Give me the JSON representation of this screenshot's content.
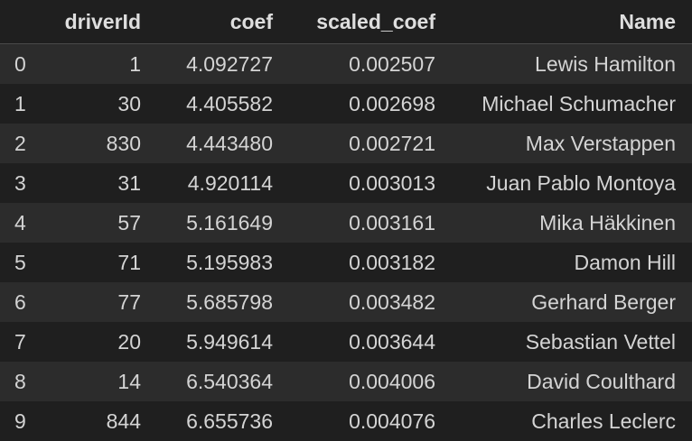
{
  "table": {
    "columns": [
      "",
      "driverId",
      "coef",
      "scaled_coef",
      "Name"
    ],
    "rows": [
      {
        "index": "0",
        "driverId": "1",
        "coef": "4.092727",
        "scaled_coef": "0.002507",
        "name": "Lewis Hamilton"
      },
      {
        "index": "1",
        "driverId": "30",
        "coef": "4.405582",
        "scaled_coef": "0.002698",
        "name": "Michael Schumacher"
      },
      {
        "index": "2",
        "driverId": "830",
        "coef": "4.443480",
        "scaled_coef": "0.002721",
        "name": "Max Verstappen"
      },
      {
        "index": "3",
        "driverId": "31",
        "coef": "4.920114",
        "scaled_coef": "0.003013",
        "name": "Juan Pablo Montoya"
      },
      {
        "index": "4",
        "driverId": "57",
        "coef": "5.161649",
        "scaled_coef": "0.003161",
        "name": "Mika Häkkinen"
      },
      {
        "index": "5",
        "driverId": "71",
        "coef": "5.195983",
        "scaled_coef": "0.003182",
        "name": "Damon Hill"
      },
      {
        "index": "6",
        "driverId": "77",
        "coef": "5.685798",
        "scaled_coef": "0.003482",
        "name": "Gerhard Berger"
      },
      {
        "index": "7",
        "driverId": "20",
        "coef": "5.949614",
        "scaled_coef": "0.003644",
        "name": "Sebastian Vettel"
      },
      {
        "index": "8",
        "driverId": "14",
        "coef": "6.540364",
        "scaled_coef": "0.004006",
        "name": "David Coulthard"
      },
      {
        "index": "9",
        "driverId": "844",
        "coef": "6.655736",
        "scaled_coef": "0.004076",
        "name": "Charles Leclerc"
      }
    ]
  }
}
